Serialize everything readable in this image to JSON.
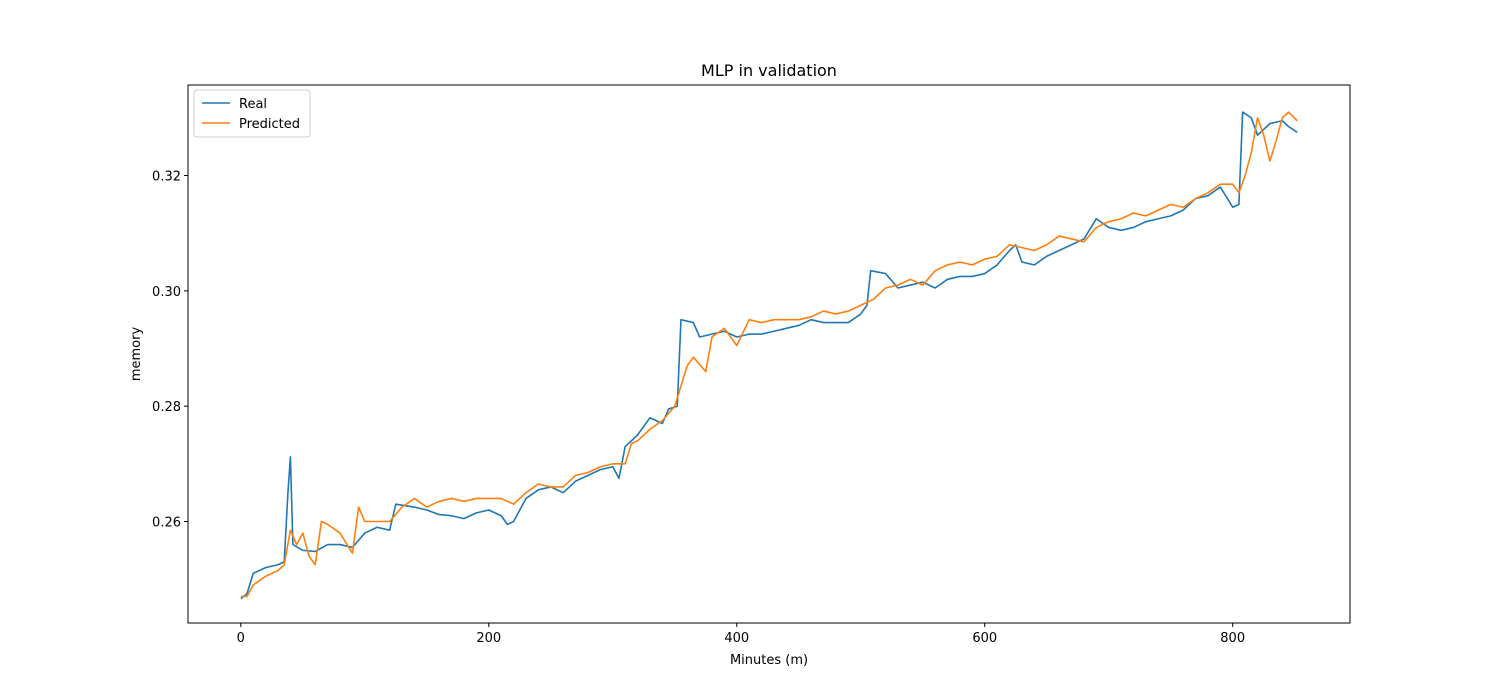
{
  "chart_data": {
    "type": "line",
    "title": "MLP in validation",
    "xlabel": "Minutes (m)",
    "ylabel": "memory",
    "xlim": [
      -42.6,
      894.6
    ],
    "xticks": [
      0,
      200,
      400,
      600,
      800
    ],
    "ylim": [
      0.2424,
      0.3357
    ],
    "yticks": [
      {
        "value": 0.26,
        "label": "0.26"
      },
      {
        "value": 0.28,
        "label": "0.28"
      },
      {
        "value": 0.3,
        "label": "0.30"
      },
      {
        "value": 0.32,
        "label": "0.32"
      }
    ],
    "legend": "upper left",
    "series": [
      {
        "name": "Real",
        "color": "#1f77b4",
        "x": [
          0,
          5,
          10,
          20,
          30,
          35,
          38,
          40,
          42,
          50,
          60,
          70,
          80,
          90,
          100,
          110,
          120,
          125,
          140,
          150,
          160,
          170,
          180,
          190,
          200,
          210,
          215,
          220,
          230,
          240,
          250,
          260,
          270,
          280,
          290,
          300,
          305,
          310,
          320,
          330,
          340,
          345,
          352,
          355,
          365,
          370,
          380,
          390,
          400,
          410,
          420,
          430,
          440,
          450,
          460,
          470,
          480,
          490,
          500,
          505,
          508,
          520,
          530,
          540,
          550,
          560,
          570,
          580,
          590,
          600,
          610,
          620,
          625,
          630,
          640,
          650,
          660,
          670,
          680,
          690,
          700,
          710,
          720,
          730,
          740,
          750,
          760,
          770,
          780,
          790,
          800,
          805,
          808,
          815,
          820,
          830,
          840,
          845,
          852
        ],
        "values": [
          0.2466,
          0.2475,
          0.251,
          0.252,
          0.2525,
          0.253,
          0.265,
          0.2712,
          0.256,
          0.255,
          0.2548,
          0.256,
          0.256,
          0.2555,
          0.258,
          0.259,
          0.2585,
          0.263,
          0.2625,
          0.262,
          0.2612,
          0.261,
          0.2605,
          0.2615,
          0.262,
          0.261,
          0.2595,
          0.26,
          0.264,
          0.2655,
          0.266,
          0.265,
          0.267,
          0.268,
          0.269,
          0.2695,
          0.2675,
          0.273,
          0.275,
          0.278,
          0.277,
          0.2795,
          0.28,
          0.295,
          0.2945,
          0.292,
          0.2925,
          0.293,
          0.292,
          0.2925,
          0.2925,
          0.293,
          0.2935,
          0.294,
          0.295,
          0.2945,
          0.2945,
          0.2945,
          0.296,
          0.2975,
          0.3035,
          0.303,
          0.3005,
          0.301,
          0.3015,
          0.3005,
          0.302,
          0.3025,
          0.3025,
          0.303,
          0.3045,
          0.307,
          0.308,
          0.305,
          0.3045,
          0.306,
          0.307,
          0.308,
          0.309,
          0.3125,
          0.311,
          0.3105,
          0.311,
          0.312,
          0.3125,
          0.313,
          0.314,
          0.316,
          0.3165,
          0.318,
          0.3145,
          0.315,
          0.331,
          0.33,
          0.327,
          0.329,
          0.3295,
          0.3285,
          0.3275
        ]
      },
      {
        "name": "Predicted",
        "color": "#ff7f0e",
        "x": [
          0,
          5,
          10,
          20,
          30,
          35,
          40,
          45,
          50,
          55,
          60,
          65,
          70,
          80,
          90,
          95,
          100,
          110,
          120,
          130,
          140,
          150,
          160,
          170,
          180,
          190,
          200,
          210,
          220,
          230,
          240,
          250,
          260,
          270,
          280,
          290,
          300,
          310,
          315,
          320,
          330,
          340,
          350,
          360,
          365,
          375,
          380,
          390,
          400,
          410,
          420,
          430,
          440,
          450,
          460,
          470,
          480,
          490,
          500,
          510,
          520,
          530,
          540,
          550,
          560,
          570,
          580,
          590,
          600,
          610,
          620,
          630,
          640,
          650,
          660,
          670,
          680,
          690,
          700,
          710,
          720,
          730,
          740,
          750,
          760,
          770,
          780,
          790,
          800,
          805,
          810,
          815,
          820,
          825,
          830,
          835,
          840,
          845,
          852
        ],
        "values": [
          0.247,
          0.247,
          0.249,
          0.2505,
          0.2515,
          0.2525,
          0.2585,
          0.256,
          0.258,
          0.254,
          0.2525,
          0.26,
          0.2595,
          0.258,
          0.2545,
          0.2625,
          0.26,
          0.26,
          0.26,
          0.2625,
          0.264,
          0.2625,
          0.2635,
          0.264,
          0.2635,
          0.264,
          0.264,
          0.264,
          0.263,
          0.265,
          0.2665,
          0.266,
          0.266,
          0.268,
          0.2685,
          0.2695,
          0.27,
          0.27,
          0.2735,
          0.274,
          0.276,
          0.2775,
          0.28,
          0.287,
          0.2885,
          0.286,
          0.292,
          0.2935,
          0.2905,
          0.295,
          0.2945,
          0.295,
          0.295,
          0.295,
          0.2955,
          0.2965,
          0.296,
          0.2965,
          0.2975,
          0.2985,
          0.3005,
          0.301,
          0.302,
          0.301,
          0.3035,
          0.3045,
          0.305,
          0.3045,
          0.3055,
          0.306,
          0.308,
          0.3075,
          0.307,
          0.308,
          0.3095,
          0.309,
          0.3085,
          0.311,
          0.312,
          0.3125,
          0.3135,
          0.313,
          0.314,
          0.315,
          0.3145,
          0.316,
          0.317,
          0.3185,
          0.3185,
          0.317,
          0.32,
          0.324,
          0.33,
          0.327,
          0.3225,
          0.326,
          0.33,
          0.331,
          0.3295
        ]
      }
    ]
  }
}
